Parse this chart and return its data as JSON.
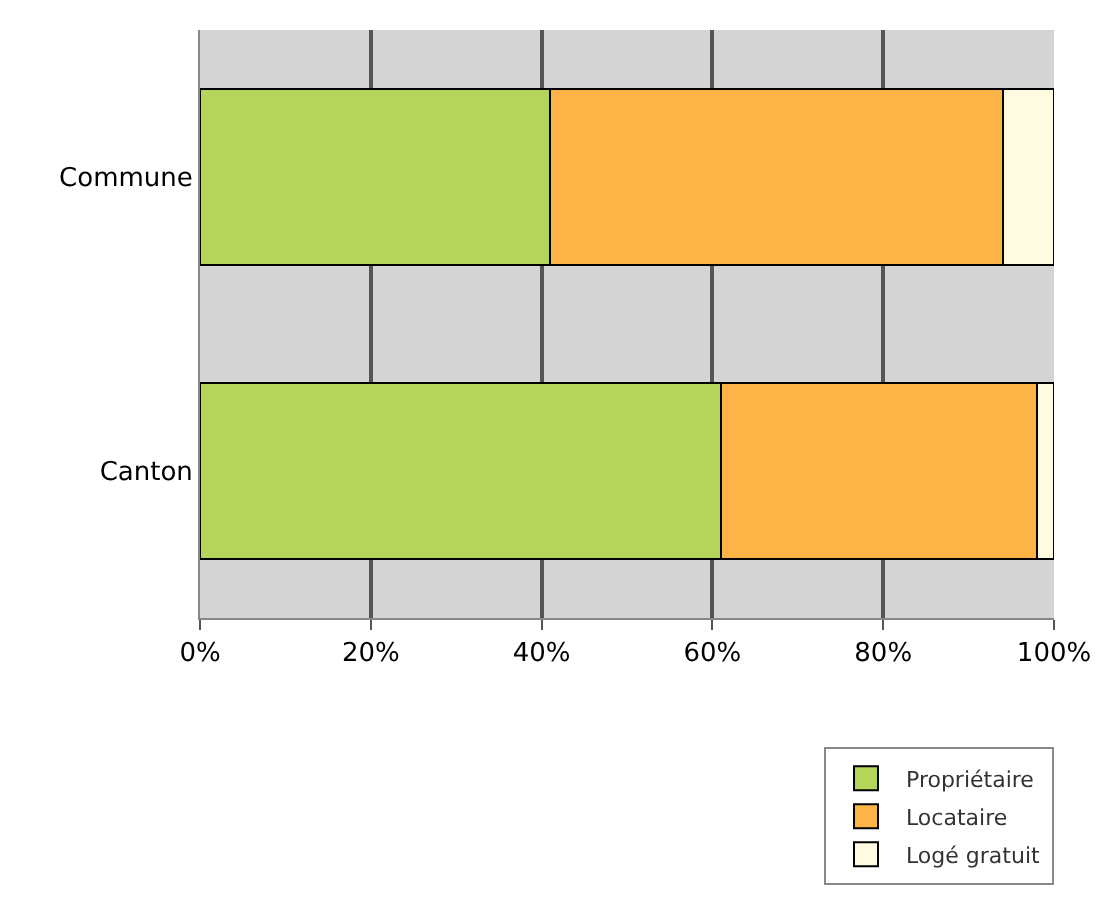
{
  "chart_data": {
    "type": "bar",
    "orientation": "horizontal",
    "stacked": true,
    "categories": [
      "Commune",
      "Canton"
    ],
    "series": [
      {
        "name": "Propriétaire",
        "color": "#b5d55a",
        "values": [
          41,
          61
        ]
      },
      {
        "name": "Locataire",
        "color": "#fdb447",
        "values": [
          53,
          37
        ]
      },
      {
        "name": "Logé gratuit",
        "color": "#fffbe0",
        "values": [
          6,
          2
        ]
      }
    ],
    "xlim": [
      0,
      100
    ],
    "xticks": [
      {
        "value": 0,
        "label": "0%"
      },
      {
        "value": 20,
        "label": "20%"
      },
      {
        "value": 40,
        "label": "40%"
      },
      {
        "value": 60,
        "label": "60%"
      },
      {
        "value": 80,
        "label": "80%"
      },
      {
        "value": 100,
        "label": "100%"
      }
    ],
    "grid": "x",
    "legend": "bottom right"
  }
}
